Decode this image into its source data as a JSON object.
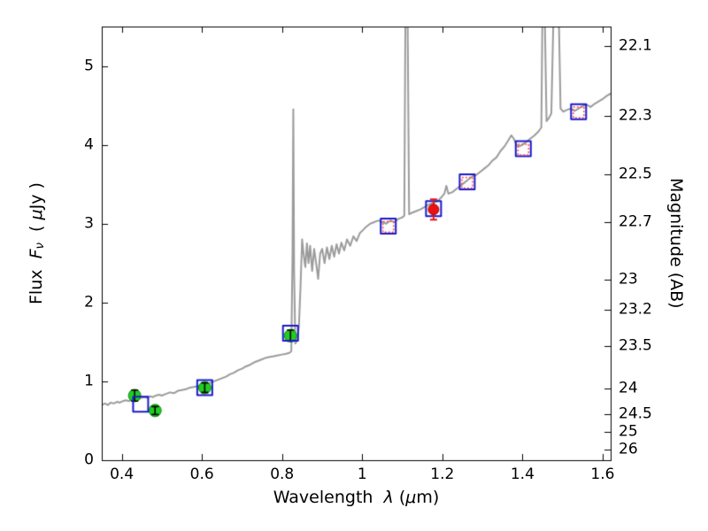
{
  "figure": {
    "background": "#ffffff",
    "labels": {
      "x_prefix": "Wavelength",
      "x_symbol": "λ",
      "x_unit_open": "(",
      "x_unit_mu": "μ",
      "x_unit_close": "m)",
      "flux_prefix": "Flux",
      "flux_symbol": "F",
      "flux_symbol_sub": "ν",
      "flux_unit_open": "( ",
      "flux_unit_mu": "μ",
      "flux_unit_close": "Jy )",
      "mag_label": "Magnitude (AB)"
    }
  },
  "chart_data": {
    "type": "line+scatter",
    "title": "",
    "xlabel": "Wavelength λ (μm)",
    "ylabel_left": "Flux Fν ( μJy )",
    "ylabel_right": "Magnitude (AB)",
    "xlim": [
      0.35,
      1.62
    ],
    "ylim": [
      0,
      5.5
    ],
    "grid": false,
    "x_ticks": [
      0.4,
      0.6,
      0.8,
      1.0,
      1.2,
      1.4,
      1.6
    ],
    "x_tick_labels": [
      "0.4",
      "0.6",
      "0.8",
      "1",
      "1.2",
      "1.4",
      "1.6"
    ],
    "y_ticks_left": [
      0,
      1,
      2,
      3,
      4,
      5
    ],
    "y_tick_left_labels": [
      "0",
      "1",
      "2",
      "3",
      "4",
      "5"
    ],
    "y_ticks_right": [
      {
        "label": "22.1",
        "flux": 5.25
      },
      {
        "label": "22.3",
        "flux": 4.37
      },
      {
        "label": "22.5",
        "flux": 3.63
      },
      {
        "label": "22.7",
        "flux": 3.02
      },
      {
        "label": "23",
        "flux": 2.29
      },
      {
        "label": "23.2",
        "flux": 1.91
      },
      {
        "label": "23.5",
        "flux": 1.45
      },
      {
        "label": "24",
        "flux": 0.91
      },
      {
        "label": "24.5",
        "flux": 0.58
      },
      {
        "label": "25",
        "flux": 0.36
      },
      {
        "label": "26",
        "flux": 0.14
      }
    ],
    "spectrum": {
      "name": "model-spectrum",
      "color": "#9b9b9b",
      "linewidth": 2,
      "points": [
        [
          0.35,
          0.7
        ],
        [
          0.358,
          0.72
        ],
        [
          0.365,
          0.7
        ],
        [
          0.372,
          0.73
        ],
        [
          0.38,
          0.72
        ],
        [
          0.388,
          0.74
        ],
        [
          0.395,
          0.73
        ],
        [
          0.403,
          0.75
        ],
        [
          0.41,
          0.76
        ],
        [
          0.418,
          0.75
        ],
        [
          0.425,
          0.77
        ],
        [
          0.433,
          0.78
        ],
        [
          0.44,
          0.77
        ],
        [
          0.448,
          0.79
        ],
        [
          0.455,
          0.8
        ],
        [
          0.463,
          0.79
        ],
        [
          0.47,
          0.81
        ],
        [
          0.478,
          0.8
        ],
        [
          0.485,
          0.82
        ],
        [
          0.493,
          0.83
        ],
        [
          0.5,
          0.82
        ],
        [
          0.51,
          0.84
        ],
        [
          0.52,
          0.86
        ],
        [
          0.53,
          0.85
        ],
        [
          0.54,
          0.88
        ],
        [
          0.55,
          0.89
        ],
        [
          0.56,
          0.9
        ],
        [
          0.57,
          0.92
        ],
        [
          0.58,
          0.93
        ],
        [
          0.59,
          0.94
        ],
        [
          0.6,
          0.95
        ],
        [
          0.61,
          0.97
        ],
        [
          0.62,
          0.98
        ],
        [
          0.63,
          1.0
        ],
        [
          0.64,
          1.02
        ],
        [
          0.65,
          1.04
        ],
        [
          0.66,
          1.06
        ],
        [
          0.67,
          1.09
        ],
        [
          0.68,
          1.11
        ],
        [
          0.69,
          1.14
        ],
        [
          0.7,
          1.16
        ],
        [
          0.71,
          1.19
        ],
        [
          0.72,
          1.21
        ],
        [
          0.73,
          1.24
        ],
        [
          0.74,
          1.26
        ],
        [
          0.75,
          1.28
        ],
        [
          0.76,
          1.3
        ],
        [
          0.77,
          1.31
        ],
        [
          0.78,
          1.32
        ],
        [
          0.79,
          1.33
        ],
        [
          0.8,
          1.34
        ],
        [
          0.81,
          1.35
        ],
        [
          0.818,
          1.36
        ],
        [
          0.823,
          1.38
        ],
        [
          0.826,
          2.6
        ],
        [
          0.828,
          4.45
        ],
        [
          0.83,
          2.4
        ],
        [
          0.833,
          1.48
        ],
        [
          0.838,
          1.52
        ],
        [
          0.842,
          1.7
        ],
        [
          0.846,
          2.2
        ],
        [
          0.85,
          2.8
        ],
        [
          0.854,
          2.6
        ],
        [
          0.858,
          2.45
        ],
        [
          0.862,
          2.75
        ],
        [
          0.866,
          2.5
        ],
        [
          0.87,
          2.72
        ],
        [
          0.875,
          2.4
        ],
        [
          0.88,
          2.68
        ],
        [
          0.885,
          2.5
        ],
        [
          0.89,
          2.3
        ],
        [
          0.895,
          2.62
        ],
        [
          0.9,
          2.68
        ],
        [
          0.906,
          2.5
        ],
        [
          0.912,
          2.7
        ],
        [
          0.918,
          2.55
        ],
        [
          0.924,
          2.72
        ],
        [
          0.93,
          2.58
        ],
        [
          0.936,
          2.74
        ],
        [
          0.942,
          2.62
        ],
        [
          0.948,
          2.76
        ],
        [
          0.955,
          2.66
        ],
        [
          0.962,
          2.8
        ],
        [
          0.97,
          2.72
        ],
        [
          0.978,
          2.84
        ],
        [
          0.986,
          2.78
        ],
        [
          0.994,
          2.88
        ],
        [
          1.002,
          2.92
        ],
        [
          1.01,
          2.96
        ],
        [
          1.02,
          3.0
        ],
        [
          1.03,
          3.02
        ],
        [
          1.04,
          3.04
        ],
        [
          1.05,
          3.02
        ],
        [
          1.06,
          3.0
        ],
        [
          1.07,
          3.04
        ],
        [
          1.08,
          3.02
        ],
        [
          1.09,
          3.06
        ],
        [
          1.1,
          3.08
        ],
        [
          1.105,
          3.1
        ],
        [
          1.108,
          5.8
        ],
        [
          1.113,
          5.8
        ],
        [
          1.117,
          3.12
        ],
        [
          1.125,
          3.14
        ],
        [
          1.135,
          3.16
        ],
        [
          1.145,
          3.18
        ],
        [
          1.155,
          3.21
        ],
        [
          1.165,
          3.24
        ],
        [
          1.175,
          3.26
        ],
        [
          1.185,
          3.28
        ],
        [
          1.195,
          3.32
        ],
        [
          1.205,
          3.38
        ],
        [
          1.21,
          3.48
        ],
        [
          1.215,
          3.38
        ],
        [
          1.225,
          3.4
        ],
        [
          1.235,
          3.44
        ],
        [
          1.245,
          3.48
        ],
        [
          1.255,
          3.52
        ],
        [
          1.265,
          3.56
        ],
        [
          1.275,
          3.6
        ],
        [
          1.285,
          3.62
        ],
        [
          1.295,
          3.66
        ],
        [
          1.305,
          3.7
        ],
        [
          1.315,
          3.74
        ],
        [
          1.325,
          3.8
        ],
        [
          1.335,
          3.84
        ],
        [
          1.345,
          3.92
        ],
        [
          1.355,
          3.98
        ],
        [
          1.365,
          4.06
        ],
        [
          1.372,
          4.12
        ],
        [
          1.378,
          4.08
        ],
        [
          1.385,
          4.0
        ],
        [
          1.392,
          3.98
        ],
        [
          1.4,
          4.0
        ],
        [
          1.41,
          4.04
        ],
        [
          1.42,
          4.08
        ],
        [
          1.43,
          4.12
        ],
        [
          1.44,
          4.17
        ],
        [
          1.447,
          4.22
        ],
        [
          1.45,
          5.8
        ],
        [
          1.455,
          5.8
        ],
        [
          1.46,
          4.3
        ],
        [
          1.466,
          4.34
        ],
        [
          1.472,
          4.4
        ],
        [
          1.478,
          5.8
        ],
        [
          1.49,
          5.8
        ],
        [
          1.495,
          4.46
        ],
        [
          1.502,
          4.42
        ],
        [
          1.51,
          4.44
        ],
        [
          1.52,
          4.46
        ],
        [
          1.53,
          4.43
        ],
        [
          1.54,
          4.46
        ],
        [
          1.55,
          4.49
        ],
        [
          1.56,
          4.51
        ],
        [
          1.57,
          4.48
        ],
        [
          1.58,
          4.52
        ],
        [
          1.59,
          4.55
        ],
        [
          1.6,
          4.58
        ],
        [
          1.61,
          4.62
        ],
        [
          1.62,
          4.65
        ]
      ]
    },
    "series": [
      {
        "name": "observed-photometry-green-circles",
        "marker": "circle-filled",
        "color": "#22cc22",
        "edge_color": "#0a8a0a",
        "err_color": "#000000",
        "size": 7,
        "points": [
          {
            "x": 0.432,
            "y": 0.82,
            "yerr": 0.07
          },
          {
            "x": 0.483,
            "y": 0.63,
            "yerr": 0.05
          },
          {
            "x": 0.607,
            "y": 0.92,
            "yerr": 0.06
          },
          {
            "x": 0.821,
            "y": 1.58,
            "yerr": 0.07
          }
        ]
      },
      {
        "name": "model-photometry-blue-open-squares",
        "marker": "square-open",
        "color": "#1a1acd",
        "size": 17,
        "points": [
          {
            "x": 0.447,
            "y": 0.71
          },
          {
            "x": 0.607,
            "y": 0.92
          },
          {
            "x": 0.821,
            "y": 1.61
          },
          {
            "x": 1.065,
            "y": 2.97
          },
          {
            "x": 1.178,
            "y": 3.19
          },
          {
            "x": 1.262,
            "y": 3.53
          },
          {
            "x": 1.402,
            "y": 3.95
          },
          {
            "x": 1.54,
            "y": 4.42
          }
        ]
      },
      {
        "name": "red-open-squares",
        "marker": "square-open-dotted",
        "color": "#ff4d4d",
        "size": 12,
        "points": [
          {
            "x": 1.065,
            "y": 2.96
          },
          {
            "x": 1.262,
            "y": 3.52
          },
          {
            "x": 1.402,
            "y": 3.94
          },
          {
            "x": 1.54,
            "y": 4.41
          }
        ]
      },
      {
        "name": "observed-red-filled-circle",
        "marker": "circle-filled",
        "color": "#e81313",
        "edge_color": "#b00000",
        "err_color": "#e81313",
        "size": 6,
        "points": [
          {
            "x": 1.178,
            "y": 3.18,
            "yerr": 0.13
          }
        ]
      }
    ]
  }
}
